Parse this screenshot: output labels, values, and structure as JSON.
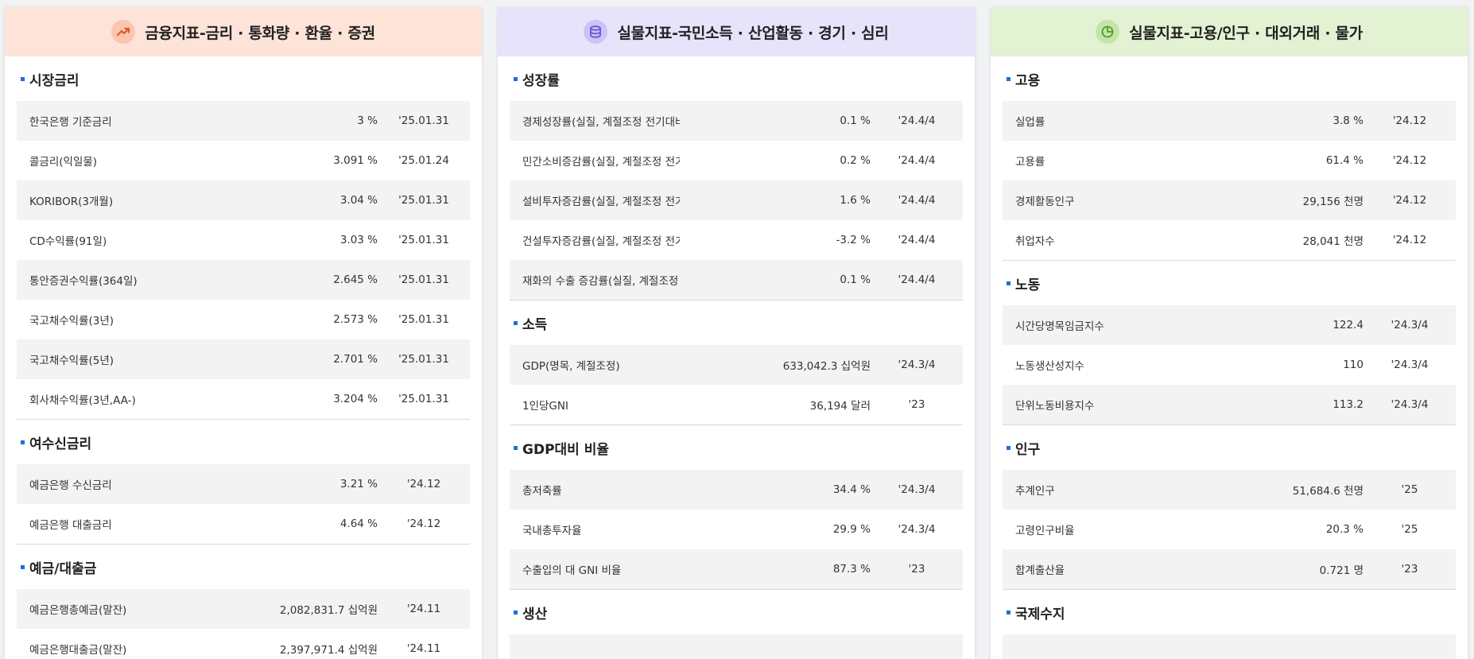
{
  "panels": [
    {
      "title": "금융지표-금리 · 통화량 · 환율 · 증권",
      "icon": "trend-up-icon",
      "sections": [
        {
          "title": "시장금리",
          "rows": [
            {
              "name": "한국은행 기준금리",
              "value": "3 %",
              "date": "'25.01.31"
            },
            {
              "name": "콜금리(익일물)",
              "value": "3.091 %",
              "date": "'25.01.24"
            },
            {
              "name": "KORIBOR(3개월)",
              "value": "3.04 %",
              "date": "'25.01.31"
            },
            {
              "name": "CD수익률(91일)",
              "value": "3.03 %",
              "date": "'25.01.31"
            },
            {
              "name": "통안증권수익률(364일)",
              "value": "2.645 %",
              "date": "'25.01.31"
            },
            {
              "name": "국고채수익률(3년)",
              "value": "2.573 %",
              "date": "'25.01.31"
            },
            {
              "name": "국고채수익률(5년)",
              "value": "2.701 %",
              "date": "'25.01.31"
            },
            {
              "name": "회사채수익률(3년,AA-)",
              "value": "3.204 %",
              "date": "'25.01.31"
            }
          ]
        },
        {
          "title": "여수신금리",
          "rows": [
            {
              "name": "예금은행 수신금리",
              "value": "3.21 %",
              "date": "'24.12"
            },
            {
              "name": "예금은행 대출금리",
              "value": "4.64 %",
              "date": "'24.12"
            }
          ]
        },
        {
          "title": "예금/대출금",
          "rows": [
            {
              "name": "예금은행총예금(말잔)",
              "value": "2,082,831.7 십억원",
              "date": "'24.11"
            },
            {
              "name": "예금은행대출금(말잔)",
              "value": "2,397,971.4 십억원",
              "date": "'24.11"
            }
          ]
        }
      ]
    },
    {
      "title": "실물지표-국민소득 · 산업활동 · 경기 · 심리",
      "icon": "coins-stack-icon",
      "sections": [
        {
          "title": "성장률",
          "rows": [
            {
              "name": "경제성장률(실질, 계절조정 전기대비)",
              "value": "0.1 %",
              "date": "'24.4/4"
            },
            {
              "name": "민간소비증감률(실질, 계절조정 전기대비)",
              "value": "0.2 %",
              "date": "'24.4/4"
            },
            {
              "name": "설비투자증감률(실질, 계절조정 전기대비)",
              "value": "1.6 %",
              "date": "'24.4/4"
            },
            {
              "name": "건설투자증감률(실질, 계절조정 전기대비)",
              "value": "-3.2 %",
              "date": "'24.4/4"
            },
            {
              "name": "재화의 수출 증감률(실질, 계절조정 전기대비)",
              "value": "0.1 %",
              "date": "'24.4/4"
            }
          ]
        },
        {
          "title": "소득",
          "rows": [
            {
              "name": "GDP(명목, 계절조정)",
              "value": "633,042.3 십억원",
              "date": "'24.3/4"
            },
            {
              "name": "1인당GNI",
              "value": "36,194 달러",
              "date": "'23"
            }
          ]
        },
        {
          "title": "GDP대비 비율",
          "rows": [
            {
              "name": "총저축률",
              "value": "34.4 %",
              "date": "'24.3/4"
            },
            {
              "name": "국내총투자율",
              "value": "29.9 %",
              "date": "'24.3/4"
            },
            {
              "name": "수출입의 대 GNI 비율",
              "value": "87.3 %",
              "date": "'23"
            }
          ]
        },
        {
          "title": "생산",
          "rows": [
            {
              "name": "",
              "value": "",
              "date": ""
            }
          ]
        }
      ]
    },
    {
      "title": "실물지표-고용/인구 · 대외거래 · 물가",
      "icon": "pie-chart-icon",
      "sections": [
        {
          "title": "고용",
          "rows": [
            {
              "name": "실업률",
              "value": "3.8 %",
              "date": "'24.12"
            },
            {
              "name": "고용률",
              "value": "61.4 %",
              "date": "'24.12"
            },
            {
              "name": "경제활동인구",
              "value": "29,156 천명",
              "date": "'24.12"
            },
            {
              "name": "취업자수",
              "value": "28,041 천명",
              "date": "'24.12"
            }
          ]
        },
        {
          "title": "노동",
          "rows": [
            {
              "name": "시간당명목임금지수",
              "value": "122.4",
              "date": "'24.3/4"
            },
            {
              "name": "노동생산성지수",
              "value": "110",
              "date": "'24.3/4"
            },
            {
              "name": "단위노동비용지수",
              "value": "113.2",
              "date": "'24.3/4"
            }
          ]
        },
        {
          "title": "인구",
          "rows": [
            {
              "name": "추계인구",
              "value": "51,684.6 천명",
              "date": "'25"
            },
            {
              "name": "고령인구비율",
              "value": "20.3 %",
              "date": "'25"
            },
            {
              "name": "합계출산율",
              "value": "0.721 명",
              "date": "'23"
            }
          ]
        },
        {
          "title": "국제수지",
          "rows": [
            {
              "name": "",
              "value": "",
              "date": ""
            }
          ]
        }
      ]
    }
  ],
  "colors": {
    "accent_blue": "#1e6fd9",
    "panel1_header": "#fde3d8",
    "panel2_header": "#e6e3fb",
    "panel3_header": "#e3f2d2",
    "icon1": "#e8542a",
    "icon2": "#6a55d6",
    "icon3": "#4e9b2a"
  }
}
